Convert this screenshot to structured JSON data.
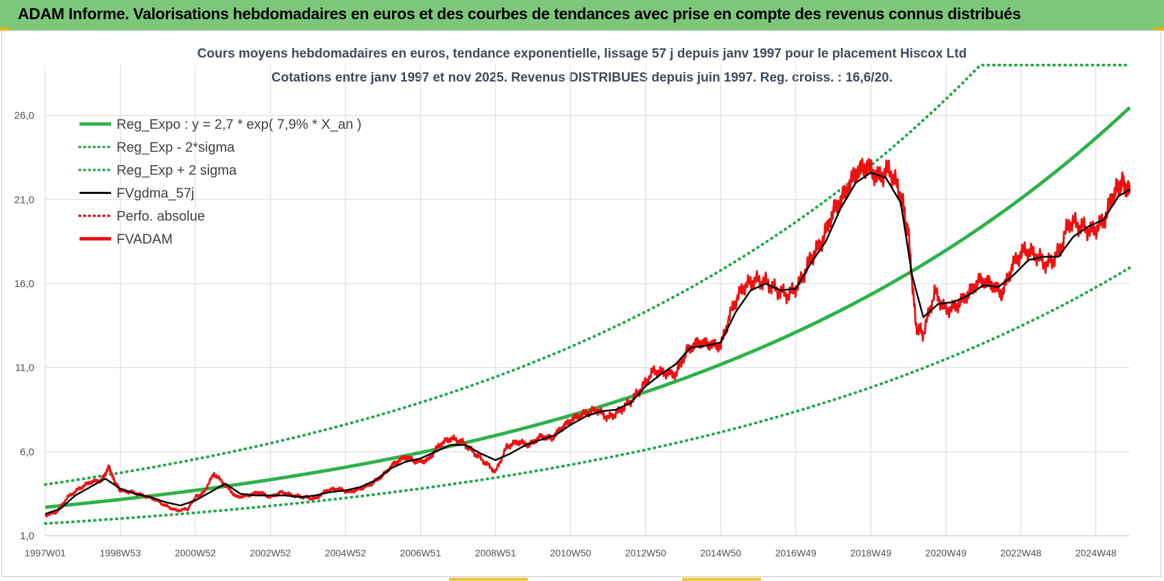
{
  "banner": {
    "title": "ADAM Informe. Valorisations hebdomadaires en euros et des courbes de tendances avec prise en compte des revenus connus distribués"
  },
  "colors": {
    "banner_bg": "#7dc77a",
    "reg_expo": "#2db24a",
    "sigma": "#1fa94a",
    "fvgdma": "#000000",
    "perfo": "#e00000",
    "fvadam": "#ee1111"
  },
  "chart_data": {
    "type": "line",
    "title": "Cours moyens hebdomadaires en euros, tendance exponentielle, lissage 57 j depuis janv 1997 pour le placement Hiscox Ltd",
    "subtitle": "Cotations entre janv 1997 et nov 2025. Revenus DISTRIBUES depuis juin 1997. Reg. croiss. : 16,6/20.",
    "ylim": [
      1.0,
      29.0
    ],
    "xlim": [
      1997.0,
      2025.9
    ],
    "y_ticks": [
      1.0,
      6.0,
      11.0,
      16.0,
      21.0,
      26.0
    ],
    "y_tick_labels": [
      "1,0",
      "6,0",
      "11,0",
      "16,0",
      "21,0",
      "26,0"
    ],
    "x_ticks": [
      1997.0,
      1999.0,
      2001.0,
      2003.0,
      2005.0,
      2007.0,
      2009.0,
      2011.0,
      2013.0,
      2015.0,
      2017.0,
      2019.0,
      2021.0,
      2023.0,
      2025.0
    ],
    "x_tick_labels": [
      "1997W01",
      "1998W53",
      "2000W52",
      "2002W52",
      "2004W52",
      "2006W51",
      "2008W51",
      "2010W50",
      "2012W50",
      "2014W50",
      "2016W49",
      "2018W49",
      "2020W49",
      "2022W48",
      "2024W48"
    ],
    "grid": true,
    "legend_position": "top-left",
    "legend": [
      {
        "label": "Reg_Expo : y = 2,7 * exp( 7,9% *  X_an )",
        "style": "solid-thick",
        "color": "#2db24a"
      },
      {
        "label": "Reg_Exp - 2*sigma",
        "style": "dotted",
        "color": "#1fa94a"
      },
      {
        "label": "Reg_Exp + 2 sigma",
        "style": "dotted",
        "color": "#1fa94a"
      },
      {
        "label": "FVgdma_57j",
        "style": "solid",
        "color": "#000000"
      },
      {
        "label": "Perfo. absolue",
        "style": "dotted",
        "color": "#e00000"
      },
      {
        "label": "FVADAM",
        "style": "solid-thick",
        "color": "#ee1111"
      }
    ],
    "regression": {
      "a": 2.7,
      "rate": 0.079,
      "lower_factor": 0.64,
      "upper_factor": 1.5,
      "upper_cap": 29.0
    },
    "series": [
      {
        "name": "FVADAM",
        "x": [
          1997.0,
          1997.3,
          1997.6,
          1997.9,
          1998.2,
          1998.5,
          1998.7,
          1998.85,
          1999.0,
          1999.3,
          1999.6,
          1999.9,
          2000.2,
          2000.5,
          2000.8,
          2001.0,
          2001.2,
          2001.5,
          2001.8,
          2002.1,
          2002.4,
          2002.7,
          2003.0,
          2003.3,
          2003.6,
          2003.9,
          2004.2,
          2004.5,
          2004.8,
          2005.1,
          2005.4,
          2005.7,
          2006.0,
          2006.3,
          2006.6,
          2006.9,
          2007.2,
          2007.5,
          2007.8,
          2008.1,
          2008.4,
          2008.7,
          2009.0,
          2009.3,
          2009.6,
          2009.9,
          2010.2,
          2010.5,
          2010.8,
          2011.1,
          2011.4,
          2011.7,
          2012.0,
          2012.3,
          2012.6,
          2012.9,
          2013.2,
          2013.5,
          2013.8,
          2014.1,
          2014.4,
          2014.7,
          2015.0,
          2015.3,
          2015.6,
          2015.9,
          2016.2,
          2016.5,
          2016.8,
          2017.1,
          2017.4,
          2017.7,
          2018.0,
          2018.3,
          2018.6,
          2018.9,
          2019.2,
          2019.5,
          2019.8,
          2020.0,
          2020.2,
          2020.4,
          2020.7,
          2021.0,
          2021.3,
          2021.6,
          2021.9,
          2022.2,
          2022.5,
          2022.8,
          2023.1,
          2023.4,
          2023.7,
          2024.0,
          2024.3,
          2024.6,
          2024.9,
          2025.2,
          2025.5,
          2025.7,
          2025.9
        ],
        "values": [
          2.2,
          2.4,
          3.3,
          3.8,
          4.2,
          4.3,
          5.1,
          4.2,
          3.7,
          3.6,
          3.4,
          3.2,
          2.8,
          2.5,
          2.6,
          3.3,
          3.5,
          4.7,
          4.0,
          3.3,
          3.4,
          3.6,
          3.3,
          3.6,
          3.4,
          3.3,
          3.2,
          3.7,
          3.8,
          3.6,
          3.8,
          4.1,
          4.6,
          5.3,
          5.7,
          5.4,
          5.5,
          6.4,
          6.8,
          6.6,
          6.0,
          5.4,
          4.8,
          6.3,
          6.6,
          6.4,
          6.9,
          6.8,
          7.5,
          8.0,
          8.3,
          8.5,
          8.0,
          8.4,
          9.0,
          9.8,
          10.8,
          10.7,
          10.6,
          12.0,
          12.5,
          12.4,
          12.3,
          14.5,
          15.8,
          16.2,
          16.1,
          15.6,
          15.3,
          16.0,
          17.5,
          18.5,
          20.3,
          21.3,
          22.6,
          23.0,
          22.3,
          22.8,
          21.3,
          19.0,
          13.5,
          13.0,
          15.5,
          14.4,
          14.7,
          15.4,
          16.2,
          16.0,
          15.4,
          17.2,
          18.0,
          17.7,
          17.1,
          17.8,
          19.7,
          19.4,
          19.1,
          19.7,
          21.5,
          22.0,
          21.4
        ]
      },
      {
        "name": "FVgdma_57j",
        "x": [
          1997.0,
          1997.4,
          1997.8,
          1998.2,
          1998.6,
          1999.0,
          1999.4,
          1999.8,
          2000.2,
          2000.6,
          2001.0,
          2001.4,
          2001.8,
          2002.2,
          2002.6,
          2003.0,
          2003.4,
          2003.8,
          2004.2,
          2004.6,
          2005.0,
          2005.4,
          2005.8,
          2006.2,
          2006.6,
          2007.0,
          2007.4,
          2007.8,
          2008.2,
          2008.6,
          2009.0,
          2009.4,
          2009.8,
          2010.2,
          2010.6,
          2011.0,
          2011.4,
          2011.8,
          2012.2,
          2012.6,
          2013.0,
          2013.4,
          2013.8,
          2014.2,
          2014.6,
          2015.0,
          2015.4,
          2015.8,
          2016.2,
          2016.6,
          2017.0,
          2017.4,
          2017.8,
          2018.2,
          2018.6,
          2019.0,
          2019.4,
          2019.8,
          2020.1,
          2020.4,
          2020.8,
          2021.2,
          2021.6,
          2022.0,
          2022.4,
          2022.8,
          2023.2,
          2023.6,
          2024.0,
          2024.4,
          2024.8,
          2025.2,
          2025.6,
          2025.9
        ],
        "values": [
          2.3,
          2.6,
          3.4,
          3.9,
          4.4,
          3.8,
          3.5,
          3.3,
          3.0,
          2.8,
          3.1,
          3.6,
          4.1,
          3.5,
          3.4,
          3.4,
          3.4,
          3.3,
          3.4,
          3.6,
          3.7,
          3.9,
          4.3,
          5.0,
          5.4,
          5.6,
          6.0,
          6.4,
          6.4,
          5.9,
          5.5,
          5.9,
          6.4,
          6.7,
          7.0,
          7.6,
          8.1,
          8.4,
          8.5,
          8.9,
          9.9,
          10.6,
          11.2,
          12.2,
          12.3,
          12.5,
          14.3,
          15.6,
          16.0,
          15.6,
          15.7,
          17.2,
          18.5,
          20.5,
          22.0,
          22.6,
          22.3,
          20.8,
          16.5,
          14.0,
          14.8,
          14.9,
          15.3,
          15.9,
          15.8,
          16.5,
          17.4,
          17.6,
          17.6,
          18.8,
          19.4,
          19.8,
          21.2,
          21.6
        ]
      }
    ]
  }
}
